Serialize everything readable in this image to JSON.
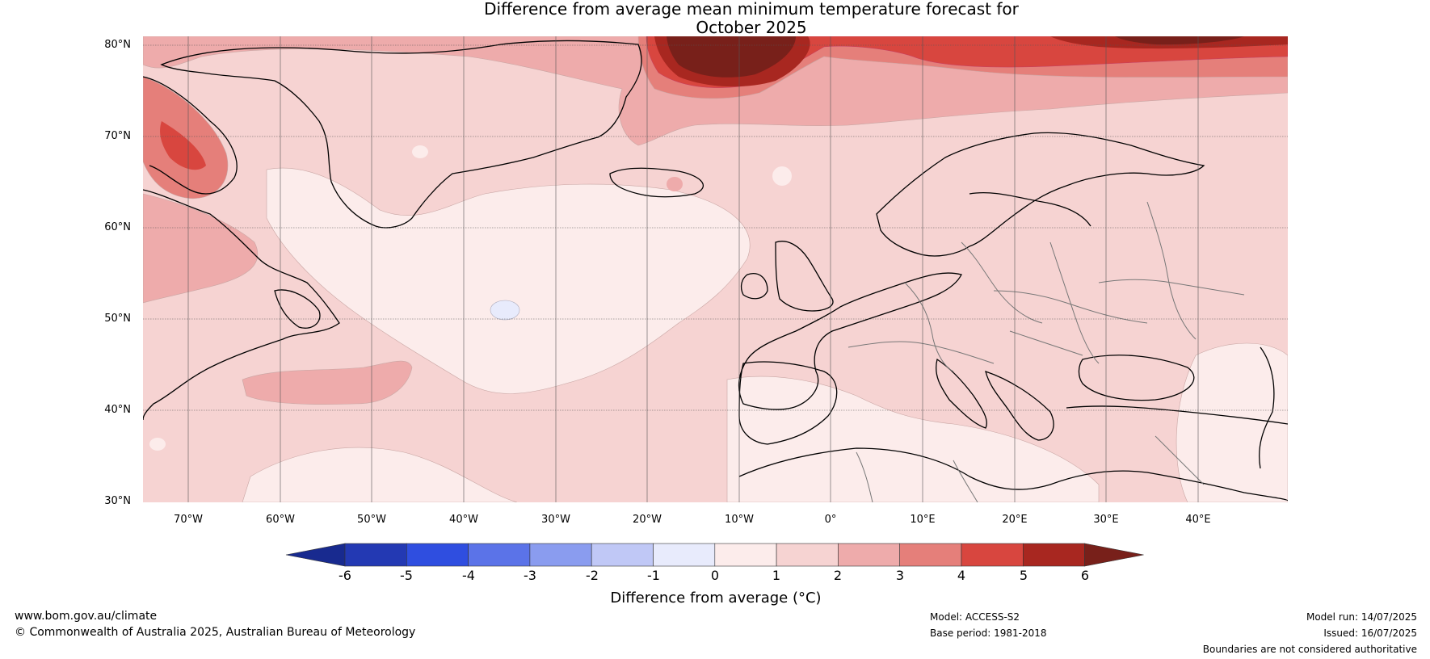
{
  "title_line1": "Difference from average mean minimum temperature forecast for",
  "title_line2": "October 2025",
  "lat_labels": [
    "80°N",
    "70°N",
    "60°N",
    "50°N",
    "40°N",
    "30°N"
  ],
  "lon_labels": [
    "70°W",
    "60°W",
    "50°W",
    "40°W",
    "30°W",
    "20°W",
    "10°W",
    "0°",
    "10°E",
    "20°E",
    "30°E",
    "40°E"
  ],
  "colorbar": {
    "title": "Difference from average (°C)",
    "ticks": [
      "-6",
      "-5",
      "-4",
      "-3",
      "-2",
      "-1",
      "0",
      "1",
      "2",
      "3",
      "4",
      "5",
      "6"
    ],
    "colors": [
      "#182a8f",
      "#2339b3",
      "#2f4ee0",
      "#5b73e8",
      "#8a9cef",
      "#c0c8f6",
      "#e8ebfc",
      "#fceceb",
      "#f6d3d2",
      "#eeabab",
      "#e57f7a",
      "#d8463f",
      "#a82720",
      "#78201a"
    ]
  },
  "footer": {
    "website": "www.bom.gov.au/climate",
    "copyright": "© Commonwealth of Australia 2025, Australian Bureau of Meteorology",
    "model": "Model: ACCESS-S2",
    "base_period": "Base period: 1981-2018",
    "model_run": "Model run: 14/07/2025",
    "issued": "Issued: 16/07/2025",
    "disclaimer": "Boundaries are not considered authoritative"
  }
}
